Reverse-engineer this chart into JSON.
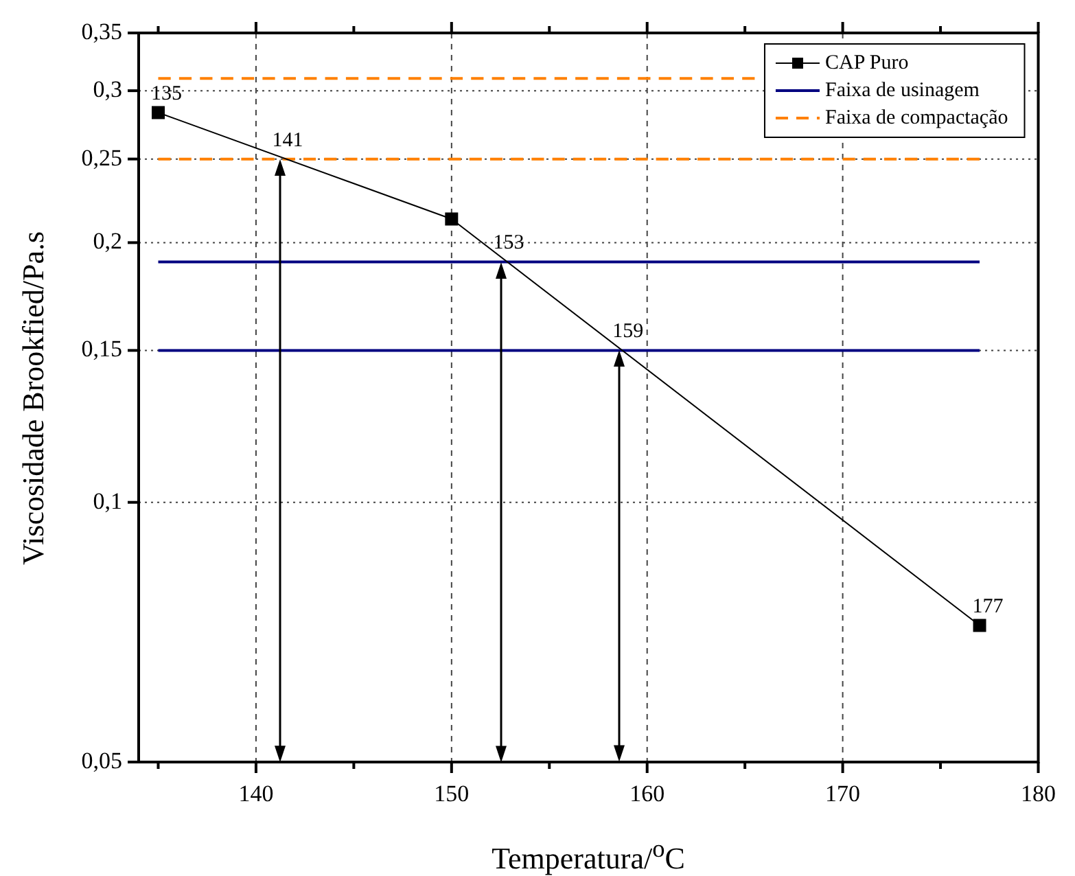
{
  "chart_data": {
    "type": "line",
    "xlabel": "Temperatura/$^{o}$C",
    "ylabel": "Viscosidade Brookfied/Pa.s",
    "xlim": [
      134,
      180
    ],
    "xticks": [
      {
        "value": 135,
        "label": null
      },
      140,
      {
        "value": 145,
        "label": null
      },
      150,
      {
        "value": 155,
        "label": null
      },
      160,
      {
        "value": 165,
        "label": null
      },
      170,
      {
        "value": 175,
        "label": null
      },
      180
    ],
    "ylim": [
      0.05,
      0.35
    ],
    "yticks": [
      {
        "value": 0.05,
        "label": "0,05"
      },
      {
        "value": 0.1,
        "label": "0,1"
      },
      {
        "value": 0.15,
        "label": "0,15"
      },
      {
        "value": 0.2,
        "label": "0,2"
      },
      {
        "value": 0.25,
        "label": "0,25"
      },
      {
        "value": 0.3,
        "label": "0,3"
      },
      {
        "value": 0.35,
        "label": "0,35"
      }
    ],
    "log": "y",
    "grid": true,
    "legend": "top right",
    "series": [
      {
        "name": "CAP Puro",
        "color": "#000000",
        "x": [
          135,
          150,
          177
        ],
        "values": [
          0.283,
          0.213,
          0.072
        ],
        "marker": "square",
        "line_style": "solid"
      },
      {
        "name": "Faixa de usinagem",
        "color": "#000080",
        "x": [
          135,
          177
        ],
        "values": [
          0.19,
          0.19
        ],
        "marker": "none",
        "line_style": "solid"
      },
      {
        "color": "#000080",
        "x": [
          135,
          177
        ],
        "values": [
          0.15,
          0.15
        ],
        "marker": "none",
        "line_style": "solid"
      },
      {
        "name": "Faixa de compactação",
        "color": "#ff8000",
        "x": [
          135,
          165.5
        ],
        "values": [
          0.31,
          0.31
        ],
        "marker": "none",
        "line_style": "dashed"
      },
      {
        "color": "#ff8000",
        "x": [
          135,
          177
        ],
        "values": [
          0.25,
          0.25
        ],
        "marker": "none",
        "line_style": "dashed"
      }
    ],
    "annotations": [
      {
        "text": "135",
        "x": 135,
        "y": 0.283
      },
      {
        "text": "141",
        "x": 141.2,
        "y": 0.25
      },
      {
        "text": "153",
        "x": 152.5,
        "y": 0.19
      },
      {
        "text": "159",
        "x": 158.6,
        "y": 0.15
      },
      {
        "text": "177",
        "x": 177,
        "y": 0.072
      }
    ]
  }
}
